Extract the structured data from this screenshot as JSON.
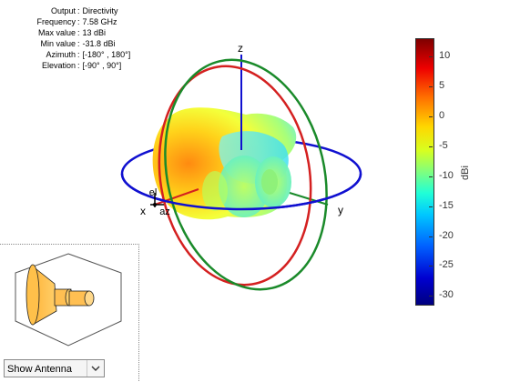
{
  "info": {
    "rows": [
      {
        "key": "Output",
        "value": "Directivity"
      },
      {
        "key": "Frequency",
        "value": "7.58 GHz"
      },
      {
        "key": "Max value",
        "value": "13 dBi"
      },
      {
        "key": "Min value",
        "value": "-31.8 dBi"
      },
      {
        "key": "Azimuth",
        "value": "[-180° , 180°]"
      },
      {
        "key": "Elevation",
        "value": "[-90° , 90°]"
      }
    ]
  },
  "axes": {
    "x": "x",
    "y": "y",
    "z": "z",
    "el": "el",
    "az": "az"
  },
  "colorbar": {
    "label": "dBi",
    "ticks": [
      "10",
      "5",
      "0",
      "-5",
      "-10",
      "-15",
      "-20",
      "-25",
      "-30"
    ]
  },
  "dropdown": {
    "selected": "Show Antenna"
  },
  "colors": {
    "azimuth_ring": "#1010d0",
    "elevation_ring_xz": "#d42020",
    "elevation_ring_yz": "#1a8a2a"
  }
}
